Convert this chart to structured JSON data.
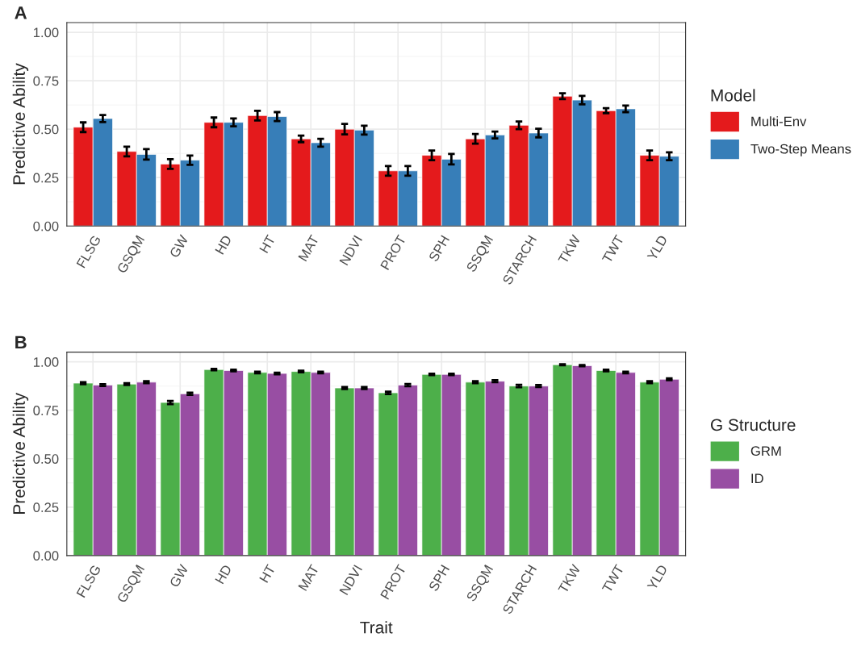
{
  "chart_data": [
    {
      "type": "bar",
      "title": "A",
      "ylabel": "Predictive Ability",
      "legend_title": "Model",
      "legend": "right",
      "grid": true,
      "categories": [
        "FLSG",
        "GSQM",
        "GW",
        "HD",
        "HT",
        "MAT",
        "NDVI",
        "PROT",
        "SPH",
        "SSQM",
        "STARCH",
        "TKW",
        "TWT",
        "YLD"
      ],
      "ylim": [
        0,
        1.05
      ],
      "yticks": [
        {
          "value": 0,
          "label": "0.00"
        },
        {
          "value": 0.25,
          "label": "0.25"
        },
        {
          "value": 0.5,
          "label": "0.50"
        },
        {
          "value": 0.75,
          "label": "0.75"
        },
        {
          "value": 1,
          "label": "1.00"
        }
      ],
      "series": [
        {
          "name": "Multi-Env",
          "color": "#e41a1c",
          "values": [
            0.51,
            0.385,
            0.32,
            0.535,
            0.57,
            0.45,
            0.5,
            0.285,
            0.365,
            0.45,
            0.52,
            0.67,
            0.595,
            0.365
          ],
          "errors": [
            0.025,
            0.025,
            0.025,
            0.025,
            0.025,
            0.017,
            0.027,
            0.025,
            0.025,
            0.025,
            0.02,
            0.015,
            0.013,
            0.025
          ]
        },
        {
          "name": "Two-Step Means",
          "color": "#377eb8",
          "values": [
            0.555,
            0.37,
            0.34,
            0.535,
            0.565,
            0.43,
            0.495,
            0.285,
            0.345,
            0.47,
            0.48,
            0.65,
            0.605,
            0.36
          ],
          "errors": [
            0.018,
            0.027,
            0.024,
            0.02,
            0.023,
            0.02,
            0.023,
            0.025,
            0.027,
            0.018,
            0.022,
            0.022,
            0.017,
            0.02
          ]
        }
      ]
    },
    {
      "type": "bar",
      "title": "B",
      "xlabel": "Trait",
      "ylabel": "Predictive Ability",
      "legend_title": "G Structure",
      "legend": "right",
      "grid": true,
      "categories": [
        "FLSG",
        "GSQM",
        "GW",
        "HD",
        "HT",
        "MAT",
        "NDVI",
        "PROT",
        "SPH",
        "SSQM",
        "STARCH",
        "TKW",
        "TWT",
        "YLD"
      ],
      "ylim": [
        0,
        1.05
      ],
      "yticks": [
        {
          "value": 0,
          "label": "0.00"
        },
        {
          "value": 0.25,
          "label": "0.25"
        },
        {
          "value": 0.5,
          "label": "0.50"
        },
        {
          "value": 0.75,
          "label": "0.75"
        },
        {
          "value": 1,
          "label": "1.00"
        }
      ],
      "series": [
        {
          "name": "GRM",
          "color": "#4daf4a",
          "values": [
            0.89,
            0.885,
            0.79,
            0.96,
            0.945,
            0.95,
            0.865,
            0.84,
            0.935,
            0.895,
            0.875,
            0.985,
            0.955,
            0.895
          ],
          "errors": [
            0.005,
            0.005,
            0.008,
            0.004,
            0.004,
            0.004,
            0.005,
            0.006,
            0.004,
            0.005,
            0.006,
            0.003,
            0.004,
            0.005
          ]
        },
        {
          "name": "ID",
          "color": "#984ea3",
          "values": [
            0.88,
            0.895,
            0.835,
            0.955,
            0.94,
            0.945,
            0.865,
            0.88,
            0.935,
            0.9,
            0.875,
            0.98,
            0.945,
            0.91
          ],
          "errors": [
            0.005,
            0.005,
            0.006,
            0.004,
            0.004,
            0.004,
            0.005,
            0.006,
            0.004,
            0.005,
            0.005,
            0.003,
            0.004,
            0.005
          ]
        }
      ]
    }
  ]
}
